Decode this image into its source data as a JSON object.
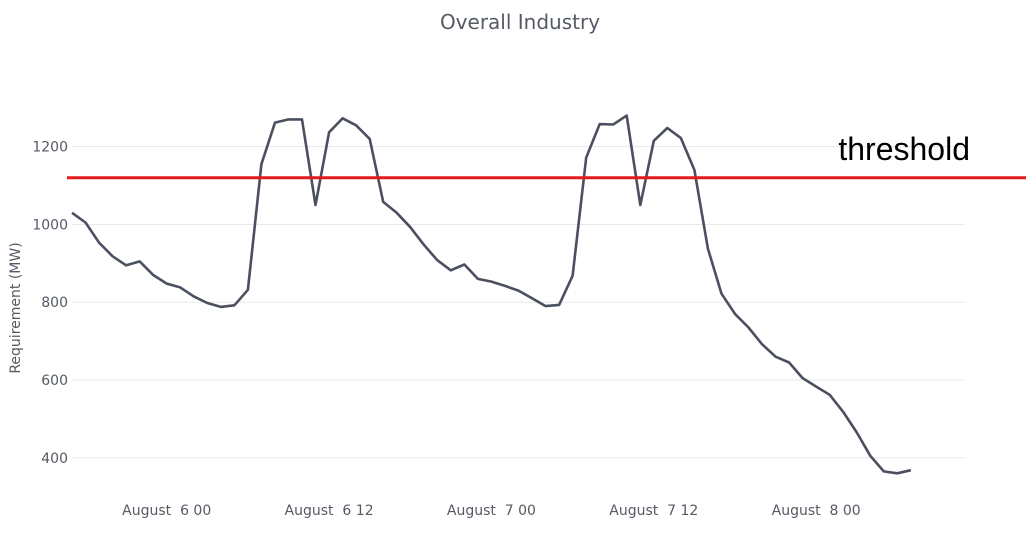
{
  "chart_data": {
    "type": "line",
    "title": "Overall Industry",
    "xlabel": "",
    "ylabel": "Requirement (MW)",
    "grid": true,
    "legend": "none",
    "ylim": [
      330,
      1320
    ],
    "xlim": [
      "2024-08-05T17:00",
      "2024-08-08T11:00"
    ],
    "yticks": [
      400,
      600,
      800,
      1000,
      1200
    ],
    "xticks": [
      {
        "t": "2024-08-06T00:00",
        "label": "August  6 00"
      },
      {
        "t": "2024-08-06T12:00",
        "label": "August  6 12"
      },
      {
        "t": "2024-08-07T00:00",
        "label": "August  7 00"
      },
      {
        "t": "2024-08-07T12:00",
        "label": "August  7 12"
      },
      {
        "t": "2024-08-08T00:00",
        "label": "August  8 00"
      }
    ],
    "series": [
      {
        "color": "#4b5060",
        "points": [
          [
            "2024-08-05T17:00",
            1030
          ],
          [
            "2024-08-05T18:00",
            1005
          ],
          [
            "2024-08-05T19:00",
            953
          ],
          [
            "2024-08-05T20:00",
            918
          ],
          [
            "2024-08-05T21:00",
            895
          ],
          [
            "2024-08-05T22:00",
            905
          ],
          [
            "2024-08-05T23:00",
            870
          ],
          [
            "2024-08-06T00:00",
            848
          ],
          [
            "2024-08-06T01:00",
            838
          ],
          [
            "2024-08-06T02:00",
            815
          ],
          [
            "2024-08-06T03:00",
            798
          ],
          [
            "2024-08-06T04:00",
            788
          ],
          [
            "2024-08-06T05:00",
            792
          ],
          [
            "2024-08-06T06:00",
            832
          ],
          [
            "2024-08-06T07:00",
            1155
          ],
          [
            "2024-08-06T08:00",
            1262
          ],
          [
            "2024-08-06T09:00",
            1270
          ],
          [
            "2024-08-06T10:00",
            1270
          ],
          [
            "2024-08-06T11:00",
            1050
          ],
          [
            "2024-08-06T12:00",
            1237
          ],
          [
            "2024-08-06T13:00",
            1273
          ],
          [
            "2024-08-06T14:00",
            1255
          ],
          [
            "2024-08-06T15:00",
            1220
          ],
          [
            "2024-08-06T16:00",
            1058
          ],
          [
            "2024-08-06T17:00",
            1030
          ],
          [
            "2024-08-06T18:00",
            993
          ],
          [
            "2024-08-06T19:00",
            948
          ],
          [
            "2024-08-06T20:00",
            908
          ],
          [
            "2024-08-06T21:00",
            882
          ],
          [
            "2024-08-06T22:00",
            897
          ],
          [
            "2024-08-06T23:00",
            860
          ],
          [
            "2024-08-07T00:00",
            853
          ],
          [
            "2024-08-07T01:00",
            842
          ],
          [
            "2024-08-07T02:00",
            830
          ],
          [
            "2024-08-07T03:00",
            810
          ],
          [
            "2024-08-07T04:00",
            790
          ],
          [
            "2024-08-07T05:00",
            793
          ],
          [
            "2024-08-07T06:00",
            868
          ],
          [
            "2024-08-07T07:00",
            1172
          ],
          [
            "2024-08-07T08:00",
            1258
          ],
          [
            "2024-08-07T09:00",
            1257
          ],
          [
            "2024-08-07T10:00",
            1280
          ],
          [
            "2024-08-07T11:00",
            1050
          ],
          [
            "2024-08-07T12:00",
            1215
          ],
          [
            "2024-08-07T13:00",
            1248
          ],
          [
            "2024-08-07T14:00",
            1222
          ],
          [
            "2024-08-07T15:00",
            1140
          ],
          [
            "2024-08-07T16:00",
            938
          ],
          [
            "2024-08-07T17:00",
            822
          ],
          [
            "2024-08-07T18:00",
            770
          ],
          [
            "2024-08-07T19:00",
            735
          ],
          [
            "2024-08-07T20:00",
            692
          ],
          [
            "2024-08-07T21:00",
            660
          ],
          [
            "2024-08-07T22:00",
            645
          ],
          [
            "2024-08-07T23:00",
            605
          ],
          [
            "2024-08-08T00:00",
            583
          ],
          [
            "2024-08-08T01:00",
            562
          ],
          [
            "2024-08-08T02:00",
            518
          ],
          [
            "2024-08-08T03:00",
            465
          ],
          [
            "2024-08-08T04:00",
            405
          ],
          [
            "2024-08-08T05:00",
            365
          ],
          [
            "2024-08-08T06:00",
            360
          ],
          [
            "2024-08-08T07:00",
            368
          ]
        ]
      }
    ],
    "annotations": [
      {
        "type": "hline",
        "y": 1120,
        "color": "#e31a1c",
        "label": "threshold"
      }
    ]
  }
}
